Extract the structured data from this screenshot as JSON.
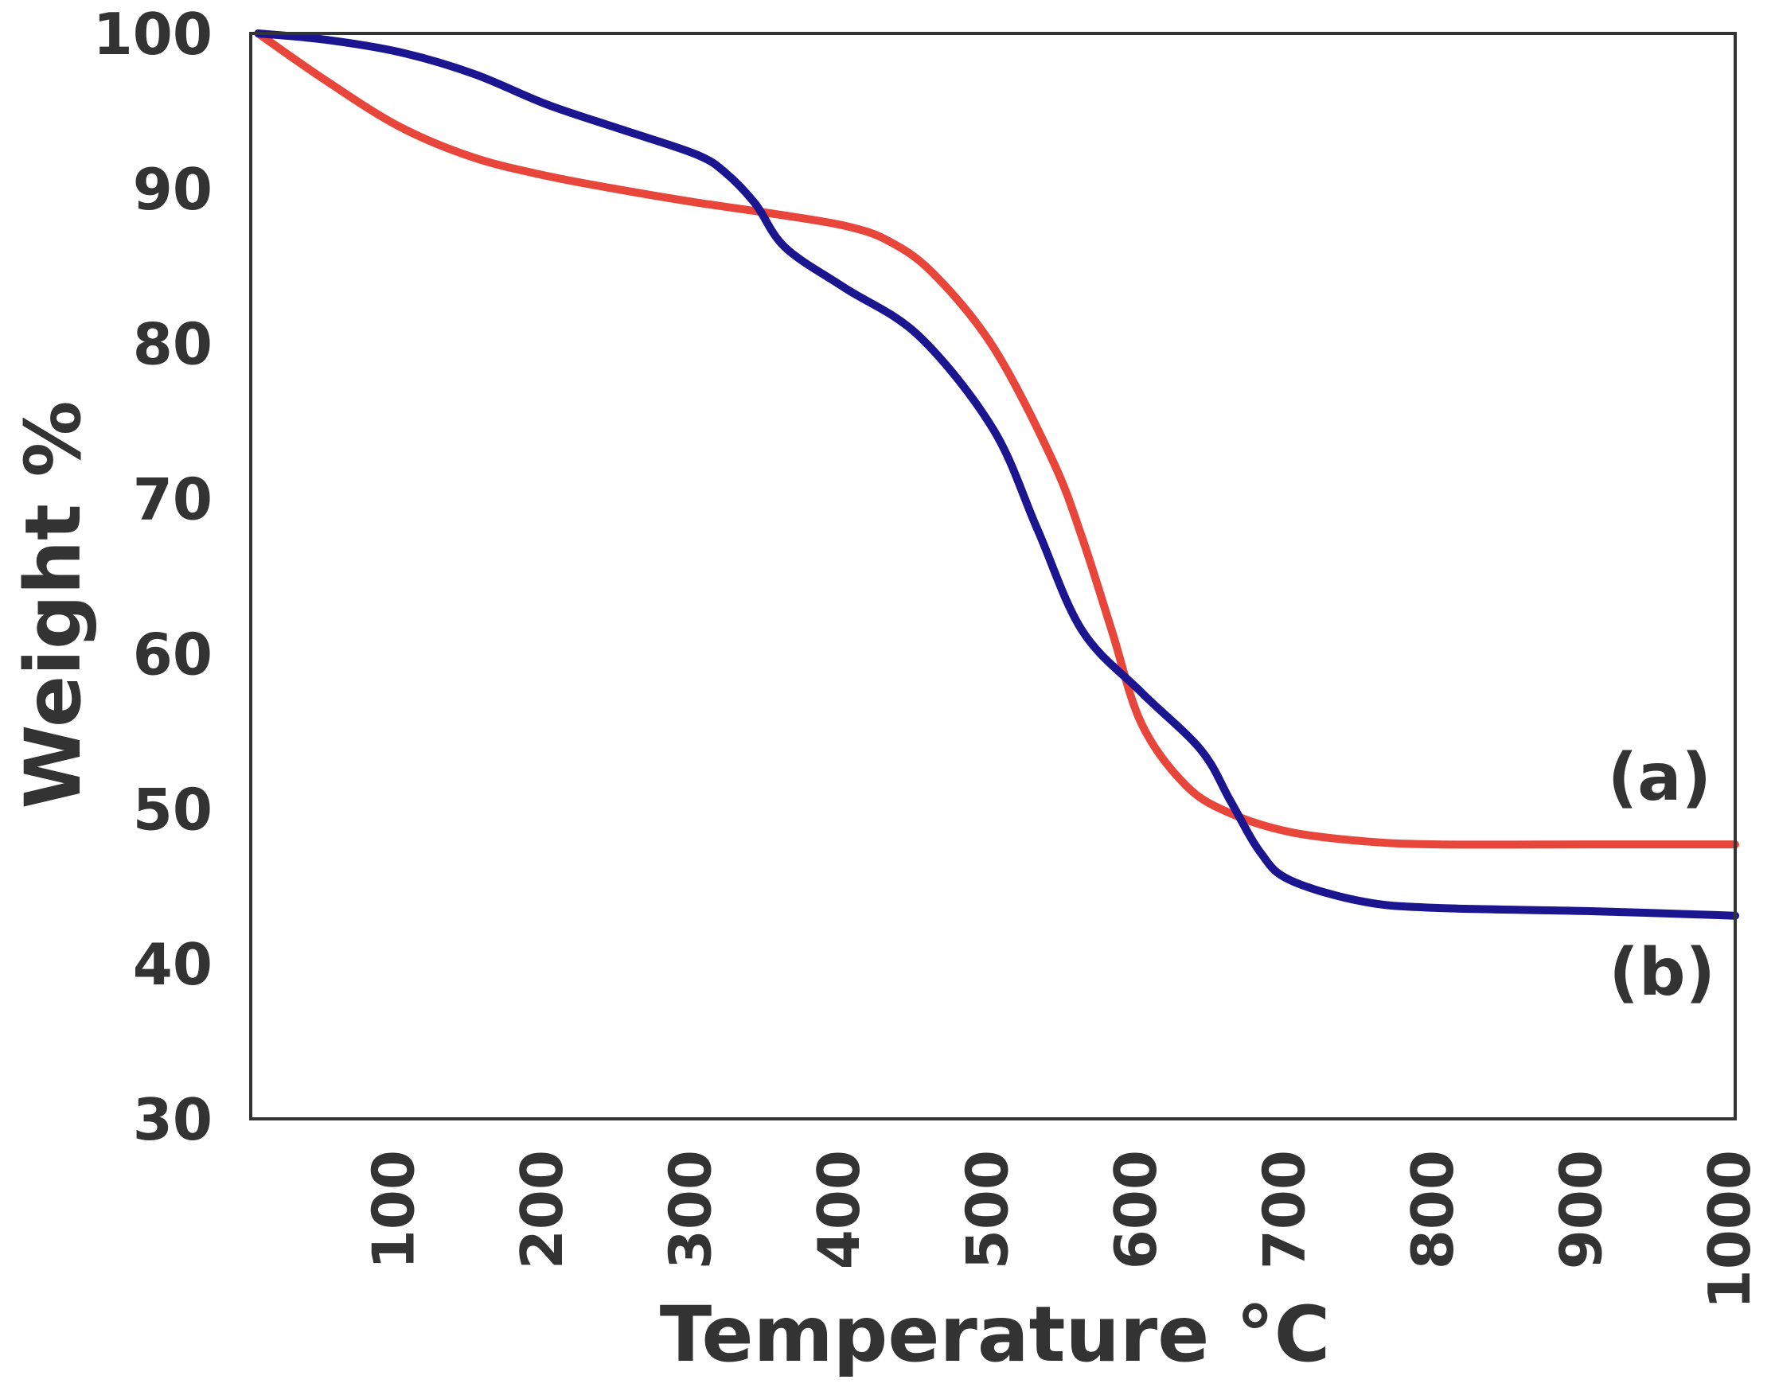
{
  "chart_data": {
    "type": "line",
    "title": "",
    "xlabel": "Temperature °C",
    "ylabel": "Weight %",
    "xlim": [
      0,
      1000
    ],
    "ylim": [
      30,
      100
    ],
    "grid": false,
    "legend": "none",
    "x_ticks": [
      100,
      200,
      300,
      400,
      500,
      600,
      700,
      800,
      900,
      1000
    ],
    "y_ticks": [
      30,
      40,
      50,
      60,
      70,
      80,
      90,
      100
    ],
    "colors": {
      "a": "#e8453b",
      "b": "#1b1590",
      "frame": "#333333",
      "text": "#333333"
    },
    "series": [
      {
        "name": "(a)",
        "color": "#e8453b",
        "x": [
          5,
          50,
          100,
          150,
          200,
          250,
          300,
          350,
          400,
          430,
          460,
          500,
          540,
          560,
          580,
          600,
          630,
          660,
          700,
          750,
          800,
          900,
          1000
        ],
        "y": [
          100,
          97,
          94,
          92,
          90.8,
          89.9,
          89.1,
          88.4,
          87.6,
          86.6,
          84.5,
          79.8,
          72.5,
          67.5,
          61.5,
          55.5,
          51.5,
          49.7,
          48.5,
          47.9,
          47.7,
          47.7,
          47.7
        ]
      },
      {
        "name": "(b)",
        "color": "#1b1590",
        "x": [
          5,
          50,
          100,
          150,
          200,
          250,
          300,
          320,
          340,
          360,
          400,
          450,
          500,
          530,
          560,
          600,
          640,
          660,
          680,
          700,
          750,
          800,
          900,
          1000
        ],
        "y": [
          100,
          99.6,
          98.8,
          97.4,
          95.4,
          93.8,
          92.2,
          91,
          89,
          86.2,
          83.6,
          80.5,
          74.5,
          68,
          61.5,
          57.5,
          53.8,
          50.5,
          47.2,
          45.4,
          44,
          43.6,
          43.4,
          43.1
        ]
      }
    ]
  }
}
